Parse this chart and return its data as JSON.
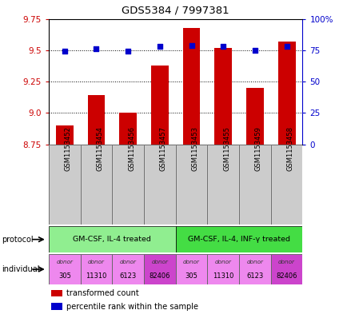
{
  "title": "GDS5384 / 7997381",
  "samples": [
    "GSM1153452",
    "GSM1153454",
    "GSM1153456",
    "GSM1153457",
    "GSM1153453",
    "GSM1153455",
    "GSM1153459",
    "GSM1153458"
  ],
  "bar_values": [
    8.9,
    9.14,
    9.0,
    9.38,
    9.68,
    9.52,
    9.2,
    9.57
  ],
  "bar_bottom": 8.75,
  "dot_values": [
    74,
    76,
    74,
    78,
    79,
    78,
    75,
    78
  ],
  "ylim": [
    8.75,
    9.75
  ],
  "ylim_right": [
    0,
    100
  ],
  "yticks_left": [
    8.75,
    9.0,
    9.25,
    9.5,
    9.75
  ],
  "yticks_right": [
    0,
    25,
    50,
    75,
    100
  ],
  "bar_color": "#cc0000",
  "dot_color": "#0000cc",
  "protocol_groups": [
    {
      "label": "GM-CSF, IL-4 treated",
      "start": 0,
      "end": 4,
      "color": "#90ee90"
    },
    {
      "label": "GM-CSF, IL-4, INF-γ treated",
      "start": 4,
      "end": 8,
      "color": "#44dd44"
    }
  ],
  "individuals": [
    "305",
    "11310",
    "6123",
    "82406",
    "305",
    "11310",
    "6123",
    "82406"
  ],
  "individual_colors": [
    "#ee88ee",
    "#ee88ee",
    "#ee88ee",
    "#cc44cc",
    "#ee88ee",
    "#ee88ee",
    "#ee88ee",
    "#cc44cc"
  ],
  "sample_bg_color": "#cccccc",
  "bg_color": "#ffffff",
  "grid_color": "#000000",
  "left_axis_color": "#cc0000",
  "right_axis_color": "#0000cc"
}
